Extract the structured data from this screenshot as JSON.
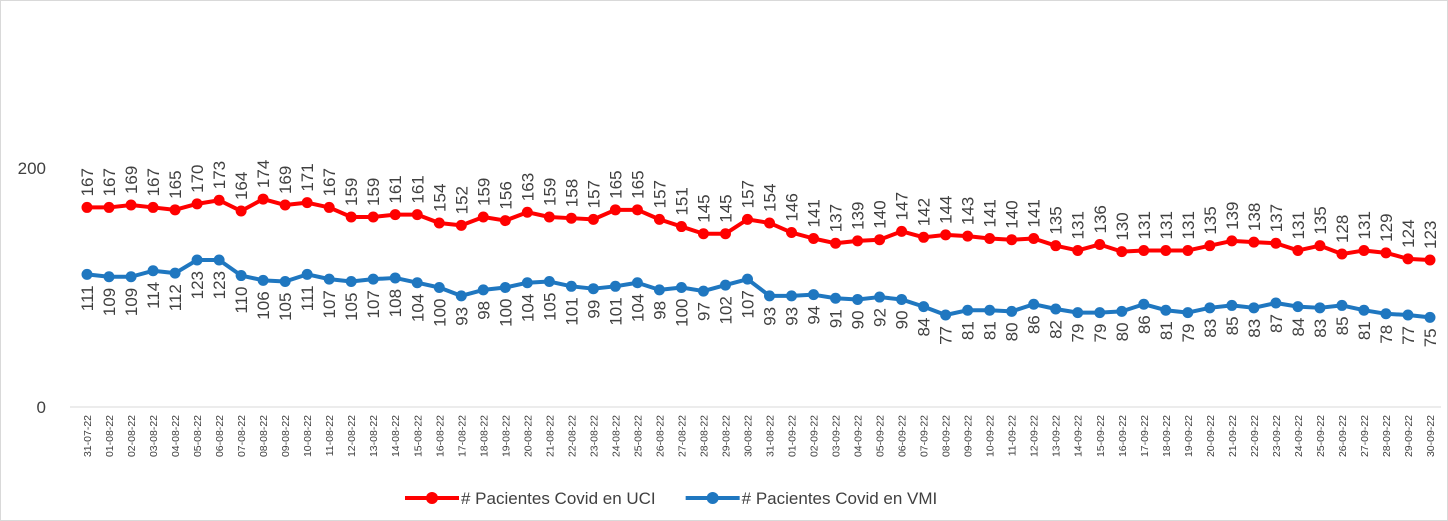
{
  "chart_data": {
    "type": "line",
    "categories": [
      "31-07-22",
      "01-08-22",
      "02-08-22",
      "03-08-22",
      "04-08-22",
      "05-08-22",
      "06-08-22",
      "07-08-22",
      "08-08-22",
      "09-08-22",
      "10-08-22",
      "11-08-22",
      "12-08-22",
      "13-08-22",
      "14-08-22",
      "15-08-22",
      "16-08-22",
      "17-08-22",
      "18-08-22",
      "19-08-22",
      "20-08-22",
      "21-08-22",
      "22-08-22",
      "23-08-22",
      "24-08-22",
      "25-08-22",
      "26-08-22",
      "27-08-22",
      "28-08-22",
      "29-08-22",
      "30-08-22",
      "31-08-22",
      "01-09-22",
      "02-09-22",
      "03-09-22",
      "04-09-22",
      "05-09-22",
      "06-09-22",
      "07-09-22",
      "08-09-22",
      "09-09-22",
      "10-09-22",
      "11-09-22",
      "12-09-22",
      "13-09-22",
      "14-09-22",
      "15-09-22",
      "16-09-22",
      "17-09-22",
      "18-09-22",
      "19-09-22",
      "20-09-22",
      "21-09-22",
      "22-09-22",
      "23-09-22",
      "24-09-22",
      "25-09-22",
      "26-09-22",
      "27-09-22",
      "28-09-22",
      "29-09-22",
      "30-09-22"
    ],
    "series": [
      {
        "name": "# Pacientes Covid en UCI",
        "color": "#ff0000",
        "values": [
          167,
          167,
          169,
          167,
          165,
          170,
          173,
          164,
          174,
          169,
          171,
          167,
          159,
          159,
          161,
          161,
          154,
          152,
          159,
          156,
          163,
          159,
          158,
          157,
          165,
          165,
          157,
          151,
          145,
          145,
          157,
          154,
          146,
          141,
          137,
          139,
          140,
          147,
          142,
          144,
          143,
          141,
          140,
          141,
          135,
          131,
          136,
          130,
          131,
          131,
          131,
          135,
          139,
          138,
          137,
          131,
          135,
          128,
          131,
          129,
          124,
          123
        ]
      },
      {
        "name": "# Pacientes Covid en VMI",
        "color": "#1f77c0",
        "values": [
          111,
          109,
          109,
          114,
          112,
          123,
          123,
          110,
          106,
          105,
          111,
          107,
          105,
          107,
          108,
          104,
          100,
          93,
          98,
          100,
          104,
          105,
          101,
          99,
          101,
          104,
          98,
          100,
          97,
          102,
          107,
          93,
          93,
          94,
          91,
          90,
          92,
          90,
          84,
          77,
          81,
          81,
          80,
          86,
          82,
          79,
          79,
          80,
          86,
          81,
          79,
          83,
          85,
          83,
          87,
          84,
          83,
          85,
          81,
          78,
          77,
          75
        ]
      }
    ],
    "ylim": [
      0,
      300
    ],
    "yticks": [
      0,
      200
    ],
    "grid": false,
    "legend": "bottom"
  }
}
